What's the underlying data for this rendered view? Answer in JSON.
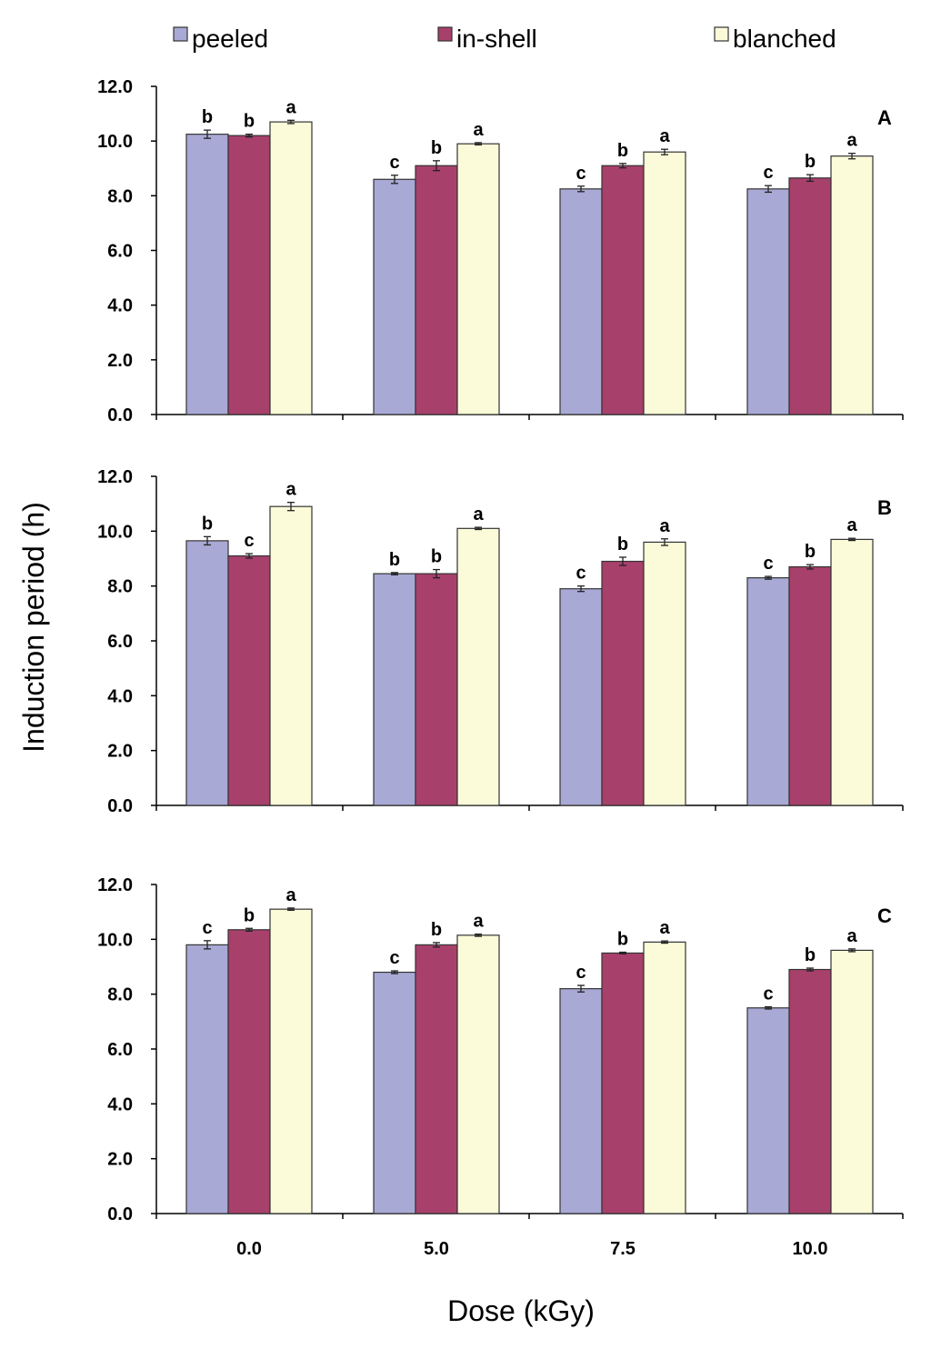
{
  "chart_data": {
    "type": "bar",
    "xlabel": "Dose (kGy)",
    "ylabel": "Induction period (h)",
    "categories": [
      "0.0",
      "5.0",
      "7.5",
      "10.0"
    ],
    "ylim": [
      0,
      12
    ],
    "yticks": [
      "0.0",
      "2.0",
      "4.0",
      "6.0",
      "8.0",
      "10.0",
      "12.0"
    ],
    "legend": {
      "placement": "top",
      "entries": [
        {
          "name": "peeled",
          "color": "#a9a9d6"
        },
        {
          "name": "in-shell",
          "color": "#a8406c"
        },
        {
          "name": "blanched",
          "color": "#fbfbd9"
        }
      ]
    },
    "panels": [
      {
        "label": "A",
        "series": [
          {
            "name": "peeled",
            "values": [
              10.25,
              8.6,
              8.25,
              8.25
            ],
            "errors": [
              0.15,
              0.15,
              0.1,
              0.12
            ],
            "sig": [
              "b",
              "c",
              "c",
              "c"
            ]
          },
          {
            "name": "in-shell",
            "values": [
              10.2,
              9.1,
              9.1,
              8.65
            ],
            "errors": [
              0.05,
              0.18,
              0.08,
              0.12
            ],
            "sig": [
              "b",
              "b",
              "b",
              "b"
            ]
          },
          {
            "name": "blanched",
            "values": [
              10.7,
              9.9,
              9.6,
              9.45
            ],
            "errors": [
              0.06,
              0.04,
              0.1,
              0.1
            ],
            "sig": [
              "a",
              "a",
              "a",
              "a"
            ]
          }
        ]
      },
      {
        "label": "B",
        "series": [
          {
            "name": "peeled",
            "values": [
              9.65,
              8.45,
              7.9,
              8.3
            ],
            "errors": [
              0.15,
              0.04,
              0.1,
              0.05
            ],
            "sig": [
              "b",
              "b",
              "c",
              "c"
            ]
          },
          {
            "name": "in-shell",
            "values": [
              9.1,
              8.45,
              8.9,
              8.7
            ],
            "errors": [
              0.08,
              0.15,
              0.15,
              0.08
            ],
            "sig": [
              "c",
              "b",
              "b",
              "b"
            ]
          },
          {
            "name": "blanched",
            "values": [
              10.9,
              10.1,
              9.6,
              9.7
            ],
            "errors": [
              0.15,
              0.04,
              0.12,
              0.04
            ],
            "sig": [
              "a",
              "a",
              "a",
              "a"
            ]
          }
        ]
      },
      {
        "label": "C",
        "series": [
          {
            "name": "peeled",
            "values": [
              9.8,
              8.8,
              8.2,
              7.5
            ],
            "errors": [
              0.15,
              0.05,
              0.12,
              0.04
            ],
            "sig": [
              "c",
              "c",
              "c",
              "c"
            ]
          },
          {
            "name": "in-shell",
            "values": [
              10.35,
              9.8,
              9.5,
              8.9
            ],
            "errors": [
              0.05,
              0.08,
              0.03,
              0.05
            ],
            "sig": [
              "b",
              "b",
              "b",
              "b"
            ]
          },
          {
            "name": "blanched",
            "values": [
              11.1,
              10.15,
              9.9,
              9.6
            ],
            "errors": [
              0.04,
              0.04,
              0.04,
              0.05
            ],
            "sig": [
              "a",
              "a",
              "a",
              "a"
            ]
          }
        ]
      }
    ]
  }
}
